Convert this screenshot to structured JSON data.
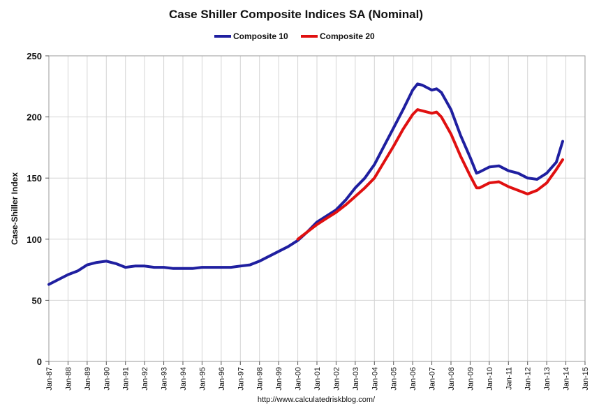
{
  "chart_data": {
    "type": "line",
    "title": "Case Shiller Composite Indices SA (Nominal)",
    "ylabel": "Case-Shiller Index",
    "xlabel": "",
    "source": "http://www.calculatedriskblog.com/",
    "ylim": [
      0,
      250
    ],
    "xlim": [
      1987,
      2015
    ],
    "yticks": [
      0,
      50,
      100,
      150,
      200,
      250
    ],
    "xtick_labels": [
      "Jan-87",
      "Jan-88",
      "Jan-89",
      "Jan-90",
      "Jan-91",
      "Jan-92",
      "Jan-93",
      "Jan-94",
      "Jan-95",
      "Jan-96",
      "Jan-97",
      "Jan-98",
      "Jan-99",
      "Jan-00",
      "Jan-01",
      "Jan-02",
      "Jan-03",
      "Jan-04",
      "Jan-05",
      "Jan-06",
      "Jan-07",
      "Jan-08",
      "Jan-09",
      "Jan-10",
      "Jan-11",
      "Jan-12",
      "Jan-13",
      "Jan-14",
      "Jan-15"
    ],
    "grid": true,
    "legend_position": "top-center",
    "series": [
      {
        "name": "Composite 10",
        "color": "#1f1fa0",
        "x": [
          "Jan-87",
          "Jul-87",
          "Jan-88",
          "Jul-88",
          "Jan-89",
          "Jul-89",
          "Jan-90",
          "Jul-90",
          "Jan-91",
          "Jul-91",
          "Jan-92",
          "Jul-92",
          "Jan-93",
          "Jul-93",
          "Jan-94",
          "Jul-94",
          "Jan-95",
          "Jul-95",
          "Jan-96",
          "Jul-96",
          "Jan-97",
          "Jul-97",
          "Jan-98",
          "Jul-98",
          "Jan-99",
          "Jul-99",
          "Jan-00",
          "Jul-00",
          "Jan-01",
          "Jul-01",
          "Jan-02",
          "Jul-02",
          "Jan-03",
          "Jul-03",
          "Jan-04",
          "Jul-04",
          "Jan-05",
          "Jul-05",
          "Jan-06",
          "Apr-06",
          "Jul-06",
          "Jan-07",
          "Apr-07",
          "Jul-07",
          "Jan-08",
          "Jul-08",
          "Jan-09",
          "May-09",
          "Jul-09",
          "Jan-10",
          "Jul-10",
          "Jan-11",
          "Jul-11",
          "Jan-12",
          "Jul-12",
          "Jan-13",
          "Jul-13",
          "Nov-13"
        ],
        "values": [
          63,
          67,
          71,
          74,
          79,
          81,
          82,
          80,
          77,
          78,
          78,
          77,
          77,
          76,
          76,
          76,
          77,
          77,
          77,
          77,
          78,
          79,
          82,
          86,
          90,
          94,
          99,
          106,
          114,
          119,
          124,
          132,
          142,
          150,
          161,
          176,
          191,
          206,
          222,
          227,
          226,
          222,
          223,
          220,
          206,
          185,
          167,
          154,
          155,
          159,
          160,
          156,
          154,
          150,
          149,
          154,
          163,
          180
        ]
      },
      {
        "name": "Composite 20",
        "color": "#e01010",
        "x": [
          "Jan-00",
          "Jul-00",
          "Jan-01",
          "Jul-01",
          "Jan-02",
          "Jul-02",
          "Jan-03",
          "Jul-03",
          "Jan-04",
          "Jul-04",
          "Jan-05",
          "Jul-05",
          "Jan-06",
          "Apr-06",
          "Jul-06",
          "Jan-07",
          "Apr-07",
          "Jul-07",
          "Jan-08",
          "Jul-08",
          "Jan-09",
          "May-09",
          "Jul-09",
          "Jan-10",
          "Jul-10",
          "Jan-11",
          "Jul-11",
          "Jan-12",
          "Jul-12",
          "Jan-13",
          "Jul-13",
          "Nov-13"
        ],
        "values": [
          100,
          106,
          112,
          117,
          122,
          128,
          135,
          142,
          150,
          163,
          176,
          190,
          202,
          206,
          205,
          203,
          204,
          200,
          186,
          168,
          152,
          142,
          142,
          146,
          147,
          143,
          140,
          137,
          140,
          146,
          157,
          165
        ]
      }
    ]
  }
}
